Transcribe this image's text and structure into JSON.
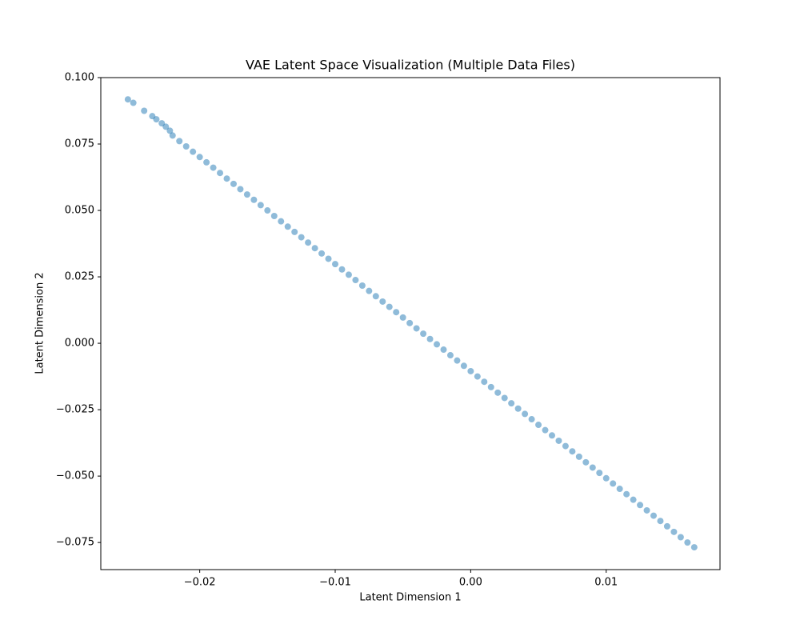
{
  "chart_data": {
    "type": "scatter",
    "title": "VAE Latent Space Visualization (Multiple Data Files)",
    "x_label": "Latent Dimension 1",
    "y_label": "Latent Dimension 2",
    "color": "#1f77b4",
    "alpha": 0.5,
    "xlim": [
      -0.0273,
      0.0184
    ],
    "ylim": [
      -0.0852,
      0.1
    ],
    "xticks": [
      {
        "value": -0.02,
        "label": "−0.02"
      },
      {
        "value": -0.01,
        "label": "−0.01"
      },
      {
        "value": 0,
        "label": "0.00"
      },
      {
        "value": 0.01,
        "label": "0.01"
      }
    ],
    "yticks": [
      {
        "value": -0.075,
        "label": "−0.075"
      },
      {
        "value": -0.05,
        "label": "−0.050"
      },
      {
        "value": -0.025,
        "label": "−0.025"
      },
      {
        "value": 0,
        "label": "0.000"
      },
      {
        "value": 0.025,
        "label": "0.025"
      },
      {
        "value": 0.05,
        "label": "0.050"
      },
      {
        "value": 0.075,
        "label": "0.075"
      },
      {
        "value": 0.1,
        "label": "0.100"
      }
    ],
    "x": [
      -0.0253,
      -0.0249,
      -0.0241,
      -0.0235,
      -0.0232,
      -0.0228,
      -0.0225,
      -0.0222,
      -0.022,
      -0.0215,
      -0.021,
      -0.0205,
      -0.02,
      -0.0195,
      -0.019,
      -0.0185,
      -0.018,
      -0.0175,
      -0.017,
      -0.0165,
      -0.016,
      -0.0155,
      -0.015,
      -0.0145,
      -0.014,
      -0.0135,
      -0.013,
      -0.0125,
      -0.012,
      -0.0115,
      -0.011,
      -0.0105,
      -0.01,
      -0.0095,
      -0.009,
      -0.0085,
      -0.008,
      -0.0075,
      -0.007,
      -0.0065,
      -0.006,
      -0.0055,
      -0.005,
      -0.0045,
      -0.004,
      -0.0035,
      -0.003,
      -0.0025,
      -0.002,
      -0.0015,
      -0.001,
      -0.0005,
      0,
      0.0005,
      0.001,
      0.0015,
      0.002,
      0.0025,
      0.003,
      0.0035,
      0.004,
      0.0045,
      0.005,
      0.0055,
      0.006,
      0.0065,
      0.007,
      0.0075,
      0.008,
      0.0085,
      0.009,
      0.0095,
      0.01,
      0.0105,
      0.011,
      0.0115,
      0.012,
      0.0125,
      0.013,
      0.0135,
      0.014,
      0.0145,
      0.015,
      0.0155,
      0.016,
      0.0165
    ],
    "values": [
      0.0918,
      0.0905,
      0.0875,
      0.0855,
      0.0843,
      0.0828,
      0.0815,
      0.08,
      0.0782,
      0.0761,
      0.0741,
      0.0721,
      0.0701,
      0.0681,
      0.0661,
      0.0641,
      0.062,
      0.06,
      0.058,
      0.056,
      0.054,
      0.052,
      0.05,
      0.0479,
      0.0459,
      0.0439,
      0.0419,
      0.0399,
      0.0379,
      0.0358,
      0.0338,
      0.0318,
      0.0298,
      0.0278,
      0.0258,
      0.0238,
      0.0217,
      0.0197,
      0.0177,
      0.0157,
      0.0137,
      0.0117,
      0.0097,
      0.0076,
      0.0056,
      0.0036,
      0.0016,
      -0.0004,
      -0.0024,
      -0.0045,
      -0.0065,
      -0.0085,
      -0.0105,
      -0.0125,
      -0.0145,
      -0.0165,
      -0.0186,
      -0.0206,
      -0.0226,
      -0.0246,
      -0.0266,
      -0.0286,
      -0.0307,
      -0.0327,
      -0.0347,
      -0.0367,
      -0.0387,
      -0.0407,
      -0.0427,
      -0.0448,
      -0.0468,
      -0.0488,
      -0.0508,
      -0.0528,
      -0.0548,
      -0.0568,
      -0.0589,
      -0.0609,
      -0.0629,
      -0.0649,
      -0.0669,
      -0.0689,
      -0.071,
      -0.073,
      -0.075,
      -0.0768
    ]
  }
}
